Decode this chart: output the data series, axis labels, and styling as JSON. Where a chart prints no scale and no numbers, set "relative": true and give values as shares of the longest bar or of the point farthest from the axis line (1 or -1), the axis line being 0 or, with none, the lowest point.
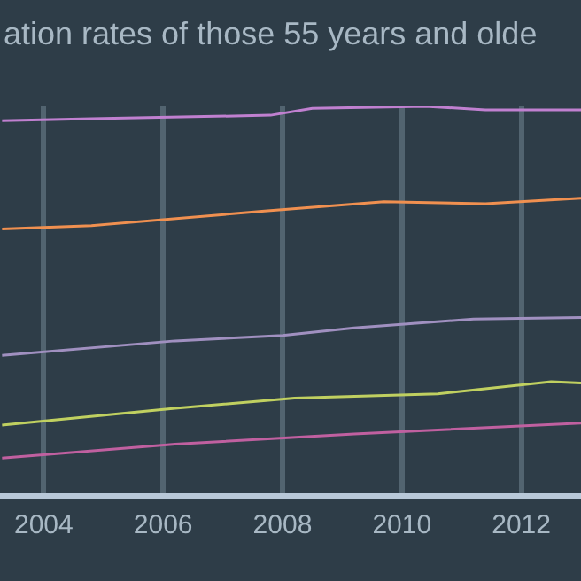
{
  "chart_data": {
    "type": "line",
    "title": "ation rates of those 55 years and olde",
    "relative": true,
    "grid": "x",
    "marker": "none",
    "line_style": "solid",
    "xlim": [
      2003.3,
      2013
    ],
    "xticks": [
      2004,
      2006,
      2008,
      2010,
      2012
    ],
    "series": [
      {
        "color": "#c080d0",
        "x": [
          2003.3,
          2004.8,
          2007.8,
          2008.5,
          2010.4,
          2011.4,
          2013
        ],
        "values": [
          0.963,
          0.968,
          0.977,
          0.995,
          1,
          0.991,
          0.991
        ]
      },
      {
        "color": "#f09050",
        "x": [
          2003.3,
          2004.8,
          2007.7,
          2009.7,
          2011.4,
          2013
        ],
        "values": [
          0.685,
          0.694,
          0.731,
          0.755,
          0.75,
          0.764
        ]
      },
      {
        "color": "#a090c0",
        "x": [
          2003.3,
          2006.2,
          2008,
          2009.2,
          2011.2,
          2013
        ],
        "values": [
          0.361,
          0.398,
          0.412,
          0.431,
          0.454,
          0.458
        ]
      },
      {
        "color": "#c0d060",
        "x": [
          2003.3,
          2006.2,
          2008.2,
          2010.6,
          2012.5,
          2013
        ],
        "values": [
          0.182,
          0.225,
          0.251,
          0.262,
          0.293,
          0.29
        ]
      },
      {
        "color": "#c060a0",
        "x": [
          2003.3,
          2006.2,
          2009.2,
          2013
        ],
        "values": [
          0.097,
          0.133,
          0.159,
          0.187
        ]
      }
    ]
  }
}
